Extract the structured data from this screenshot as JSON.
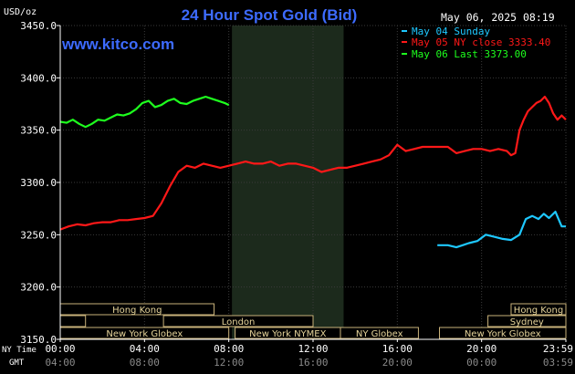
{
  "chart_data": {
    "type": "line",
    "title": "24 Hour Spot Gold (Bid)",
    "watermark": "www.kitco.com",
    "timestamp": "May 06, 2025 08:19",
    "ylabel": "USD/oz",
    "ylim": [
      3150,
      3450
    ],
    "yticks": [
      "3450.0",
      "3400.0",
      "3350.0",
      "3300.0",
      "3250.0",
      "3200.0",
      "3150.0"
    ],
    "xlim": [
      0,
      24
    ],
    "x_axis_label_ny": "NY Time",
    "x_axis_label_gmt": "GMT",
    "xticks_ny": [
      "00:00",
      "04:00",
      "08:00",
      "12:00",
      "16:00",
      "20:00",
      "23:59"
    ],
    "xticks_gmt": [
      "04:00",
      "08:00",
      "12:00",
      "16:00",
      "20:00",
      "00:00",
      "03:59"
    ],
    "grid": true,
    "legend_position": "top-right",
    "shaded_region": [
      8.15,
      13.45
    ],
    "series": [
      {
        "name": "May 04 Sunday",
        "color": "#1ec8ff",
        "x": [
          17.9,
          18.4,
          18.8,
          19.1,
          19.4,
          19.8,
          20.2,
          20.6,
          21.0,
          21.4,
          21.8,
          22.1,
          22.4,
          22.7,
          22.95,
          23.2,
          23.5,
          23.8,
          24.0
        ],
        "y": [
          3240,
          3240,
          3238,
          3240,
          3242,
          3244,
          3250,
          3248,
          3246,
          3245,
          3250,
          3265,
          3268,
          3265,
          3270,
          3266,
          3272,
          3258,
          3258
        ]
      },
      {
        "name": "May 05 NY close 3333.40",
        "color": "#ff1818",
        "x": [
          0.0,
          0.4,
          0.8,
          1.2,
          1.6,
          2.0,
          2.4,
          2.8,
          3.2,
          3.6,
          4.0,
          4.4,
          4.8,
          5.2,
          5.6,
          6.0,
          6.4,
          6.8,
          7.2,
          7.6,
          8.0,
          8.4,
          8.8,
          9.2,
          9.6,
          10.0,
          10.4,
          10.8,
          11.2,
          11.6,
          12.0,
          12.4,
          12.8,
          13.2,
          13.6,
          14.0,
          14.4,
          14.8,
          15.2,
          15.6,
          16.0,
          16.4,
          16.8,
          17.2,
          17.6,
          18.0,
          18.4,
          18.8,
          19.2,
          19.6,
          20.0,
          20.4,
          20.8,
          21.2,
          21.4,
          21.6,
          21.8,
          22.0,
          22.2,
          22.4,
          22.6,
          22.8,
          23.0,
          23.2,
          23.4,
          23.6,
          23.8,
          24.0
        ],
        "y": [
          3255,
          3258,
          3260,
          3259,
          3261,
          3262,
          3262,
          3264,
          3264,
          3265,
          3266,
          3268,
          3280,
          3296,
          3310,
          3316,
          3314,
          3318,
          3316,
          3314,
          3316,
          3318,
          3320,
          3318,
          3318,
          3320,
          3316,
          3318,
          3318,
          3316,
          3314,
          3310,
          3312,
          3314,
          3314,
          3316,
          3318,
          3320,
          3322,
          3326,
          3336,
          3330,
          3332,
          3334,
          3334,
          3334,
          3334,
          3328,
          3330,
          3332,
          3332,
          3330,
          3332,
          3330,
          3326,
          3328,
          3350,
          3360,
          3368,
          3372,
          3376,
          3378,
          3382,
          3376,
          3366,
          3360,
          3364,
          3360
        ]
      },
      {
        "name": "May 06 Last 3373.00",
        "color": "#1eff1e",
        "x": [
          0.0,
          0.3,
          0.6,
          0.9,
          1.2,
          1.5,
          1.8,
          2.1,
          2.4,
          2.7,
          3.0,
          3.3,
          3.6,
          3.9,
          4.2,
          4.5,
          4.8,
          5.1,
          5.4,
          5.7,
          6.0,
          6.3,
          6.6,
          6.9,
          7.2,
          7.5,
          7.8,
          8.0
        ],
        "y": [
          3358,
          3357,
          3360,
          3356,
          3353,
          3356,
          3360,
          3359,
          3362,
          3365,
          3364,
          3366,
          3370,
          3376,
          3378,
          3372,
          3374,
          3378,
          3380,
          3376,
          3375,
          3378,
          3380,
          3382,
          3380,
          3378,
          3376,
          3374
        ]
      }
    ],
    "session_rows": [
      {
        "label_color": "#ffffff",
        "sessions": [
          {
            "label": "Hong Kong",
            "start": 0.0,
            "end": 7.3
          },
          {
            "label": "Hong Kong",
            "start": 21.4,
            "end": 24.0
          }
        ]
      },
      {
        "sessions": [
          {
            "label": "",
            "start": 0.0,
            "end": 1.2
          },
          {
            "label": "London",
            "start": 4.9,
            "end": 12.0
          },
          {
            "label": "Sydney",
            "start": 20.3,
            "end": 24.0
          }
        ]
      },
      {
        "sessions": [
          {
            "label": "New York Globex",
            "start": 0.0,
            "end": 8.0
          },
          {
            "label": "New York NYMEX",
            "start": 8.3,
            "end": 13.3
          },
          {
            "label": "NY Globex",
            "start": 13.3,
            "end": 17.0
          },
          {
            "label": "New York Globex",
            "start": 18.0,
            "end": 24.0
          }
        ]
      }
    ]
  }
}
